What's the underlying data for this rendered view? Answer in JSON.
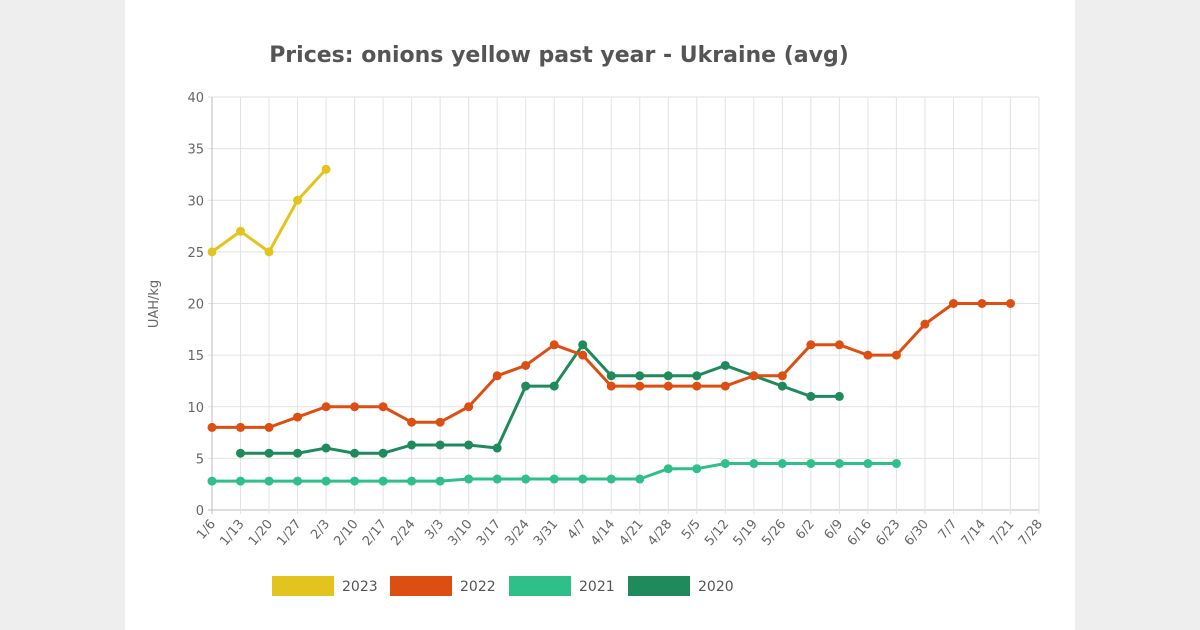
{
  "chart_data": {
    "type": "line",
    "title": "Prices: onions yellow past year - Ukraine (avg)",
    "xlabel": "",
    "ylabel": "UAH/kg",
    "ylim": [
      0,
      40
    ],
    "yticks": [
      0,
      5,
      10,
      15,
      20,
      25,
      30,
      35,
      40
    ],
    "grid": true,
    "legend_position": "bottom",
    "categories": [
      "1/6",
      "1/13",
      "1/20",
      "1/27",
      "2/3",
      "2/10",
      "2/17",
      "2/24",
      "3/3",
      "3/10",
      "3/17",
      "3/24",
      "3/31",
      "4/7",
      "4/14",
      "4/21",
      "4/28",
      "5/5",
      "5/12",
      "5/19",
      "5/26",
      "6/2",
      "6/9",
      "6/16",
      "6/23",
      "6/30",
      "7/7",
      "7/14",
      "7/21",
      "7/28"
    ],
    "series": [
      {
        "name": "2023",
        "color": "#e3c41f",
        "values": [
          25,
          27,
          25,
          30,
          33,
          null,
          null,
          null,
          null,
          null,
          null,
          null,
          null,
          null,
          null,
          null,
          null,
          null,
          null,
          null,
          null,
          null,
          null,
          null,
          null,
          null,
          null,
          null,
          null,
          null
        ]
      },
      {
        "name": "2022",
        "color": "#dd4e12",
        "values": [
          8,
          8,
          8,
          9,
          10,
          10,
          10,
          8.5,
          8.5,
          10,
          13,
          14,
          16,
          15,
          12,
          12,
          12,
          12,
          12,
          13,
          13,
          16,
          16,
          15,
          15,
          18,
          20,
          20,
          20,
          null
        ]
      },
      {
        "name": "2021",
        "color": "#2fc089",
        "values": [
          2.8,
          2.8,
          2.8,
          2.8,
          2.8,
          2.8,
          2.8,
          2.8,
          2.8,
          3,
          3,
          3,
          3,
          3,
          3,
          3,
          4,
          4,
          4.5,
          4.5,
          4.5,
          4.5,
          4.5,
          4.5,
          4.5,
          null,
          null,
          null,
          null,
          null
        ]
      },
      {
        "name": "2020",
        "color": "#1f8a5c",
        "values": [
          null,
          5.5,
          5.5,
          5.5,
          6,
          5.5,
          5.5,
          6.3,
          6.3,
          6.3,
          6,
          12,
          12,
          16,
          13,
          13,
          13,
          13,
          14,
          13,
          12,
          11,
          11,
          null,
          null,
          null,
          null,
          null,
          null,
          null
        ]
      }
    ]
  }
}
